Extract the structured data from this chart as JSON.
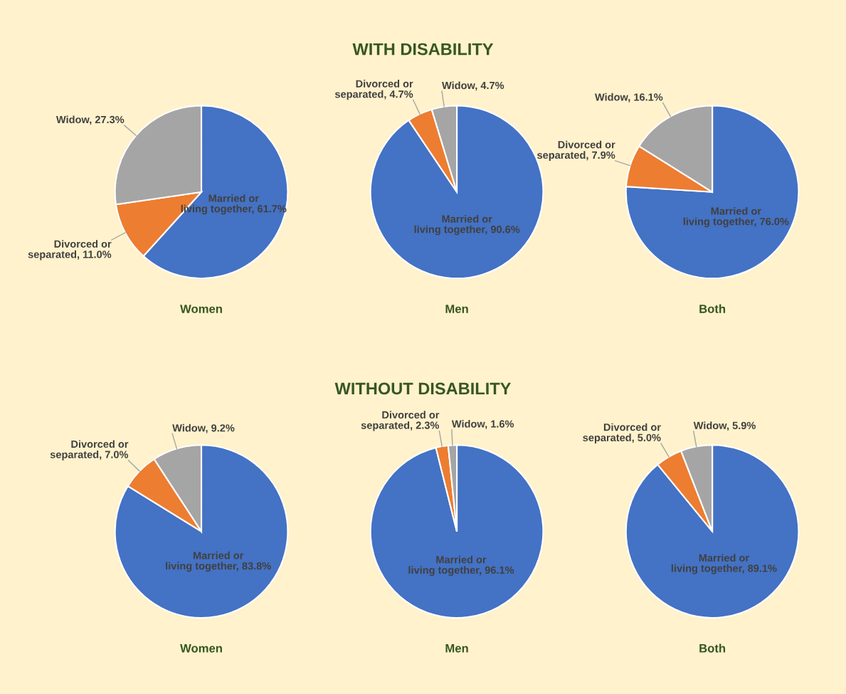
{
  "chart_data": [
    {
      "type": "pie",
      "annotations": [
        "WITH DISABILITY"
      ],
      "xlabel": "Women",
      "categories": [
        "Married or living together",
        "Divorced or separated",
        "Widow"
      ],
      "values": [
        61.7,
        11.0,
        27.3
      ],
      "value_labels": [
        "61.7%",
        "11.0%",
        "27.3%"
      ],
      "colors": [
        "#4472c4",
        "#ed7d31",
        "#a5a5a5"
      ]
    },
    {
      "type": "pie",
      "xlabel": "Men",
      "categories": [
        "Married or living together",
        "Divorced or separated",
        "Widow"
      ],
      "values": [
        90.6,
        4.7,
        4.7
      ],
      "value_labels": [
        "90.6%",
        "4.7%",
        "4.7%"
      ],
      "colors": [
        "#4472c4",
        "#ed7d31",
        "#a5a5a5"
      ]
    },
    {
      "type": "pie",
      "xlabel": "Both",
      "categories": [
        "Married or living together",
        "Divorced or separated",
        "Widow"
      ],
      "values": [
        76.0,
        7.9,
        16.1
      ],
      "value_labels": [
        "76.0%",
        "7.9%",
        "16.1%"
      ],
      "colors": [
        "#4472c4",
        "#ed7d31",
        "#a5a5a5"
      ]
    },
    {
      "type": "pie",
      "annotations": [
        "WITHOUT DISABILITY"
      ],
      "xlabel": "Women",
      "categories": [
        "Married or living together",
        "Divorced or separated",
        "Widow"
      ],
      "values": [
        83.8,
        7.0,
        9.2
      ],
      "value_labels": [
        "83.8%",
        "7.0%",
        "9.2%"
      ],
      "colors": [
        "#4472c4",
        "#ed7d31",
        "#a5a5a5"
      ]
    },
    {
      "type": "pie",
      "xlabel": "Men",
      "categories": [
        "Married or living together",
        "Divorced or separated",
        "Widow"
      ],
      "values": [
        96.1,
        2.3,
        1.6
      ],
      "value_labels": [
        "96.1%",
        "2.3%",
        "1.6%"
      ],
      "colors": [
        "#4472c4",
        "#ed7d31",
        "#a5a5a5"
      ]
    },
    {
      "type": "pie",
      "xlabel": "Both",
      "categories": [
        "Married or living together",
        "Divorced or separated",
        "Widow"
      ],
      "values": [
        89.1,
        5.0,
        5.9
      ],
      "value_labels": [
        "89.1%",
        "5.0%",
        "5.9%"
      ],
      "colors": [
        "#4472c4",
        "#ed7d31",
        "#a5a5a5"
      ]
    }
  ]
}
